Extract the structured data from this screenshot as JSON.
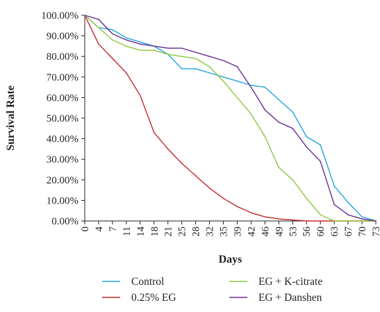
{
  "chart_data": {
    "type": "line",
    "title": "",
    "xlabel": "Days",
    "ylabel": "Survival Rate",
    "ylim": [
      0,
      100
    ],
    "y_ticks": [
      "0.00%",
      "10.00%",
      "20.00%",
      "30.00%",
      "40.00%",
      "50.00%",
      "60.00%",
      "70.00%",
      "80.00%",
      "90.00%",
      "100.00%"
    ],
    "categories": [
      "0",
      "4",
      "7",
      "11",
      "14",
      "18",
      "21",
      "25",
      "28",
      "32",
      "35",
      "39",
      "42",
      "46",
      "49",
      "53",
      "56",
      "60",
      "63",
      "67",
      "70",
      "73"
    ],
    "grid": false,
    "legend_position": "bottom",
    "series": [
      {
        "name": "Control",
        "color": "#1fa2dc",
        "values": [
          100,
          94,
          93,
          89,
          87,
          85,
          81,
          74,
          74,
          72,
          70,
          68,
          66,
          65,
          59,
          53,
          41,
          37,
          17,
          9,
          2,
          0
        ]
      },
      {
        "name": "0.25% EG",
        "color": "#c1272d",
        "values": [
          100,
          86,
          79,
          72,
          61,
          43,
          35,
          28,
          22,
          16,
          11,
          7,
          4,
          2,
          1,
          0.5,
          0,
          0,
          0,
          0,
          0,
          0
        ]
      },
      {
        "name": "EG + K-citrate",
        "color": "#8dc63f",
        "values": [
          100,
          94,
          88,
          85,
          83,
          83,
          81,
          80,
          79,
          75,
          68,
          60,
          52,
          41,
          26,
          20,
          11,
          3,
          0,
          0,
          0,
          0
        ]
      },
      {
        "name": "EG + Danshen",
        "color": "#662d91",
        "values": [
          100,
          98,
          91,
          88,
          86,
          85,
          84,
          84,
          82,
          80,
          78,
          75,
          65,
          54,
          48,
          45,
          36,
          29,
          8,
          3,
          1,
          0
        ]
      }
    ]
  }
}
